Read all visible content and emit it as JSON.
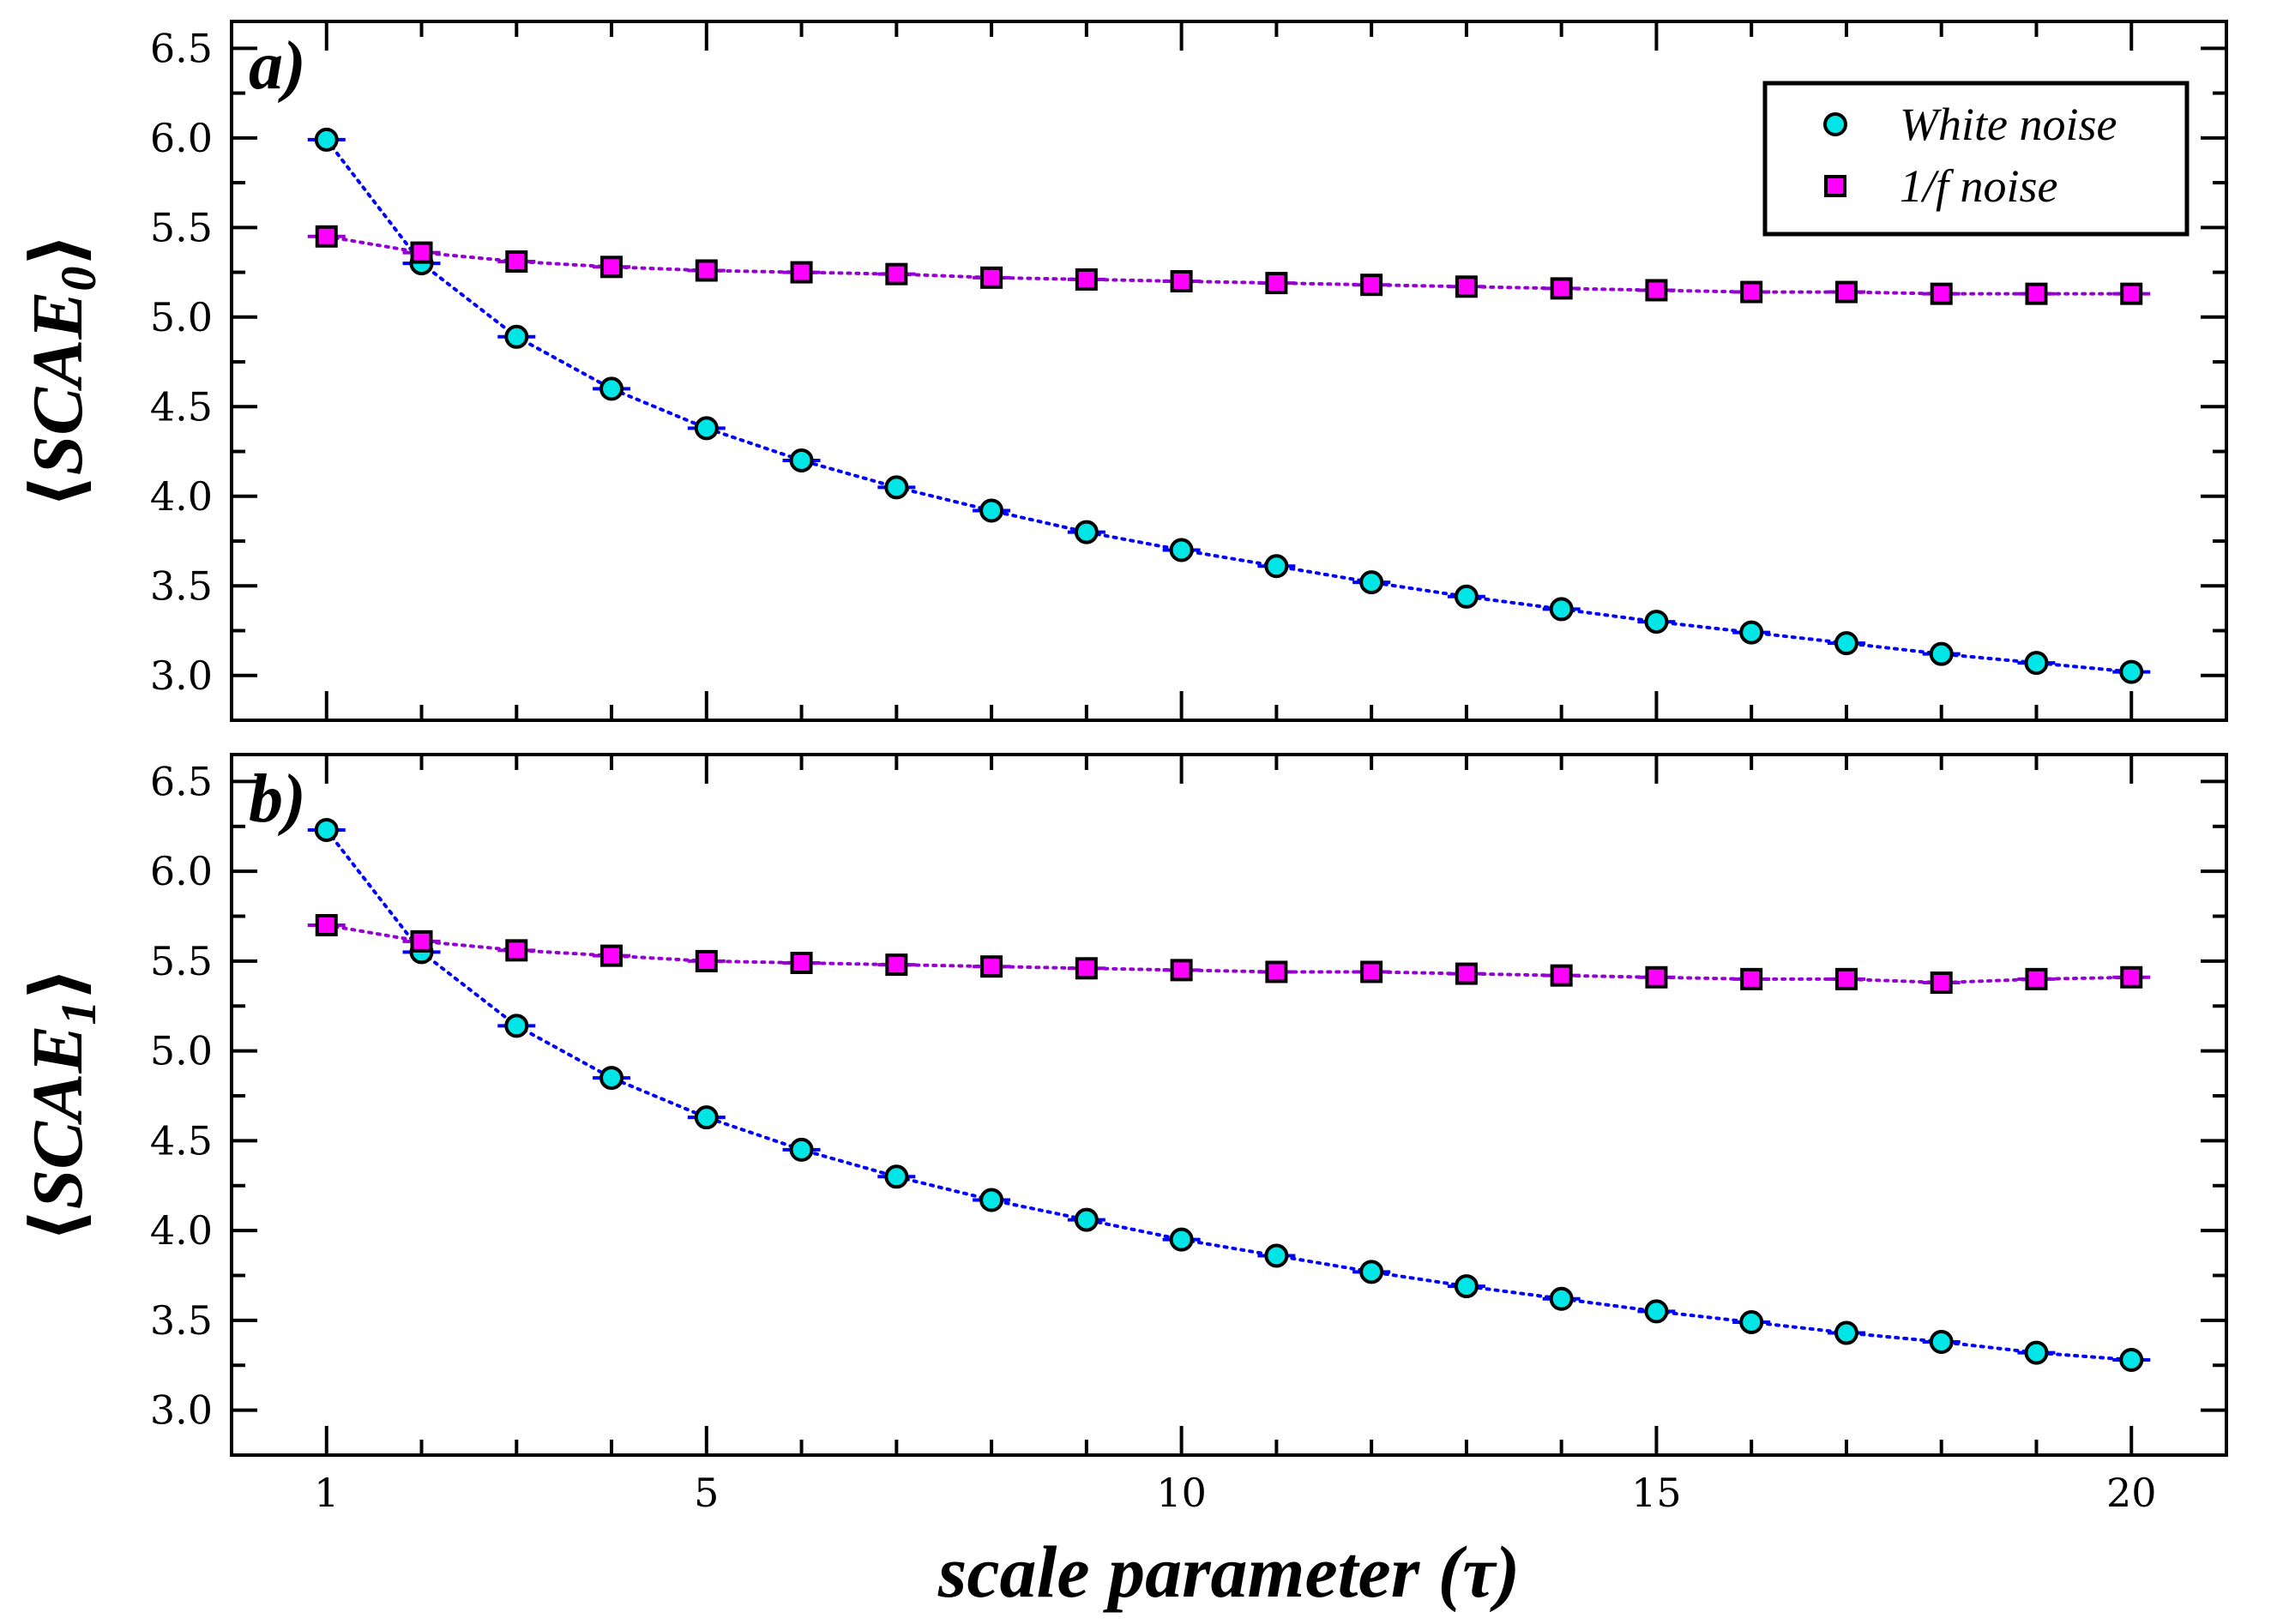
{
  "chart_data": [
    {
      "type": "scatter",
      "panel_label": "a)",
      "ylabel": "⟨SCAE0⟩",
      "ylabel_main": "SCAE",
      "ylabel_sub": "0",
      "xlabel": "",
      "xlim": [
        0,
        21
      ],
      "ylim": [
        2.75,
        6.65
      ],
      "xticks": [
        1,
        5,
        10,
        15,
        20
      ],
      "yticks": [
        3.0,
        3.5,
        4.0,
        4.5,
        5.0,
        5.5,
        6.0,
        6.5
      ],
      "ytick_labels": [
        "3.0",
        "3.5",
        "4.0",
        "4.5",
        "5.0",
        "5.5",
        "6.0",
        "6.5"
      ],
      "grid": false,
      "legend": "top-right",
      "x": [
        1,
        2,
        3,
        4,
        5,
        6,
        7,
        8,
        9,
        10,
        11,
        12,
        13,
        14,
        15,
        16,
        17,
        18,
        19,
        20
      ],
      "series": [
        {
          "name": "White noise",
          "marker": "circle",
          "fill": "#00e5e5",
          "line_color": "#0000ff",
          "values": [
            5.99,
            5.3,
            4.89,
            4.6,
            4.38,
            4.2,
            4.05,
            3.92,
            3.8,
            3.7,
            3.61,
            3.52,
            3.44,
            3.37,
            3.3,
            3.24,
            3.18,
            3.12,
            3.07,
            3.02
          ]
        },
        {
          "name": "1/f noise",
          "marker": "square",
          "fill": "#ff00ff",
          "line_color": "#9400d3",
          "values": [
            5.45,
            5.36,
            5.31,
            5.28,
            5.26,
            5.25,
            5.24,
            5.22,
            5.21,
            5.2,
            5.19,
            5.18,
            5.17,
            5.16,
            5.15,
            5.14,
            5.14,
            5.13,
            5.13,
            5.13
          ]
        }
      ]
    },
    {
      "type": "scatter",
      "panel_label": "b)",
      "ylabel": "⟨SCAE1⟩",
      "ylabel_main": "SCAE",
      "ylabel_sub": "1",
      "xlabel": "scale parameter (τ)",
      "xlim": [
        0,
        21
      ],
      "ylim": [
        2.75,
        6.65
      ],
      "xticks": [
        1,
        5,
        10,
        15,
        20
      ],
      "xtick_labels": [
        "1",
        "5",
        "10",
        "15",
        "20"
      ],
      "yticks": [
        3.0,
        3.5,
        4.0,
        4.5,
        5.0,
        5.5,
        6.0,
        6.5
      ],
      "ytick_labels": [
        "3.0",
        "3.5",
        "4.0",
        "4.5",
        "5.0",
        "5.5",
        "6.0",
        "6.5"
      ],
      "grid": false,
      "x": [
        1,
        2,
        3,
        4,
        5,
        6,
        7,
        8,
        9,
        10,
        11,
        12,
        13,
        14,
        15,
        16,
        17,
        18,
        19,
        20
      ],
      "series": [
        {
          "name": "White noise",
          "marker": "circle",
          "fill": "#00e5e5",
          "line_color": "#0000ff",
          "values": [
            6.23,
            5.55,
            5.14,
            4.85,
            4.63,
            4.45,
            4.3,
            4.17,
            4.06,
            3.95,
            3.86,
            3.77,
            3.69,
            3.62,
            3.55,
            3.49,
            3.43,
            3.38,
            3.32,
            3.28
          ]
        },
        {
          "name": "1/f noise",
          "marker": "square",
          "fill": "#ff00ff",
          "line_color": "#9400d3",
          "values": [
            5.7,
            5.61,
            5.56,
            5.53,
            5.5,
            5.49,
            5.48,
            5.47,
            5.46,
            5.45,
            5.44,
            5.44,
            5.43,
            5.42,
            5.41,
            5.4,
            5.4,
            5.38,
            5.4,
            5.41
          ]
        }
      ]
    }
  ]
}
